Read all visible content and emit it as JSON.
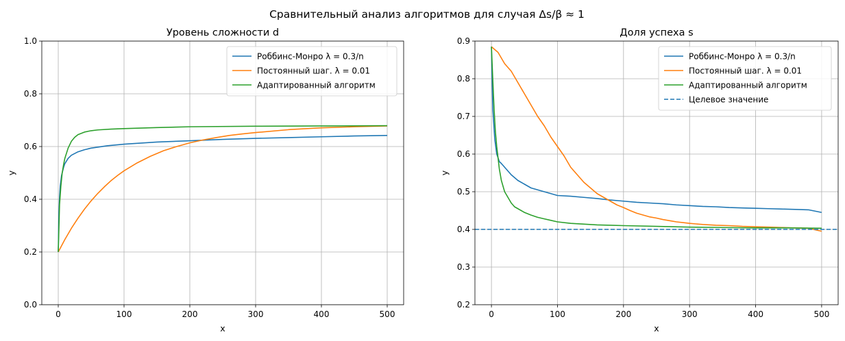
{
  "suptitle": "Сравнительный анализ алгоритмов для случая Δs/β ≈ 1",
  "colors": {
    "robbins": "#1f77b4",
    "constant": "#ff7f0e",
    "adaptive": "#2ca02c",
    "target": "#1f77b4",
    "grid": "#b0b0b0"
  },
  "chart_data": [
    {
      "type": "line",
      "title": "Уровень сложности d",
      "xlabel": "x",
      "ylabel": "y",
      "xlim": [
        -25,
        525
      ],
      "ylim": [
        0.0,
        1.0
      ],
      "xticks": [
        0,
        100,
        200,
        300,
        400,
        500
      ],
      "xtick_labels": [
        "0",
        "100",
        "200",
        "300",
        "400",
        "500"
      ],
      "yticks": [
        0.0,
        0.2,
        0.4,
        0.6,
        0.8,
        1.0
      ],
      "ytick_labels": [
        "0.0",
        "0.2",
        "0.4",
        "0.6",
        "0.8",
        "1.0"
      ],
      "grid": true,
      "legend_position": "top-right",
      "series": [
        {
          "name": "Роббинс-Монро λ = 0.3/n",
          "key": "robbins",
          "x": [
            0,
            1,
            2,
            3,
            5,
            8,
            10,
            15,
            20,
            30,
            40,
            50,
            75,
            100,
            150,
            200,
            250,
            300,
            350,
            400,
            450,
            500
          ],
          "y": [
            0.2,
            0.35,
            0.41,
            0.45,
            0.49,
            0.52,
            0.535,
            0.555,
            0.567,
            0.58,
            0.588,
            0.594,
            0.603,
            0.609,
            0.617,
            0.622,
            0.627,
            0.631,
            0.634,
            0.637,
            0.64,
            0.642
          ]
        },
        {
          "name": "Постоянный шаг. λ = 0.01",
          "key": "constant",
          "x": [
            0,
            10,
            20,
            30,
            40,
            50,
            60,
            70,
            80,
            90,
            100,
            120,
            140,
            160,
            180,
            200,
            220,
            240,
            260,
            280,
            300,
            350,
            400,
            450,
            500
          ],
          "y": [
            0.2,
            0.247,
            0.29,
            0.328,
            0.363,
            0.394,
            0.422,
            0.447,
            0.47,
            0.49,
            0.508,
            0.538,
            0.563,
            0.584,
            0.6,
            0.614,
            0.625,
            0.634,
            0.642,
            0.648,
            0.653,
            0.664,
            0.671,
            0.675,
            0.678
          ]
        },
        {
          "name": "Адаптированный алгоритм",
          "key": "adaptive",
          "x": [
            0,
            2,
            4,
            6,
            8,
            10,
            15,
            20,
            25,
            30,
            40,
            50,
            60,
            80,
            100,
            150,
            200,
            300,
            400,
            500
          ],
          "y": [
            0.2,
            0.38,
            0.45,
            0.5,
            0.53,
            0.555,
            0.594,
            0.62,
            0.635,
            0.645,
            0.655,
            0.66,
            0.663,
            0.666,
            0.668,
            0.672,
            0.675,
            0.677,
            0.678,
            0.679
          ]
        }
      ]
    },
    {
      "type": "line",
      "title": "Доля успеха s",
      "xlabel": "x",
      "ylabel": "y",
      "xlim": [
        -25,
        525
      ],
      "ylim": [
        0.2,
        0.9
      ],
      "xticks": [
        0,
        100,
        200,
        300,
        400,
        500
      ],
      "xtick_labels": [
        "0",
        "100",
        "200",
        "300",
        "400",
        "500"
      ],
      "yticks": [
        0.2,
        0.3,
        0.4,
        0.5,
        0.6,
        0.7,
        0.8,
        0.9
      ],
      "ytick_labels": [
        "0.2",
        "0.3",
        "0.4",
        "0.5",
        "0.6",
        "0.7",
        "0.8",
        "0.9"
      ],
      "grid": true,
      "legend_position": "top-right",
      "series": [
        {
          "name": "Роббинс-Монро λ = 0.3/n",
          "key": "robbins",
          "x": [
            0,
            2,
            5,
            8,
            10,
            12,
            15,
            20,
            25,
            30,
            40,
            50,
            60,
            70,
            80,
            90,
            100,
            120,
            140,
            160,
            180,
            200,
            220,
            240,
            260,
            280,
            300,
            320,
            340,
            360,
            380,
            400,
            420,
            440,
            460,
            480,
            500
          ],
          "y": [
            0.885,
            0.72,
            0.64,
            0.6,
            0.59,
            0.58,
            0.575,
            0.565,
            0.555,
            0.545,
            0.53,
            0.52,
            0.51,
            0.505,
            0.5,
            0.495,
            0.49,
            0.488,
            0.485,
            0.482,
            0.478,
            0.475,
            0.472,
            0.47,
            0.468,
            0.465,
            0.463,
            0.461,
            0.46,
            0.458,
            0.457,
            0.456,
            0.455,
            0.454,
            0.453,
            0.452,
            0.445
          ]
        },
        {
          "name": "Постоянный шаг. λ = 0.01",
          "key": "constant",
          "x": [
            0,
            10,
            20,
            30,
            40,
            50,
            60,
            70,
            80,
            90,
            100,
            110,
            120,
            130,
            140,
            150,
            160,
            170,
            180,
            190,
            200,
            210,
            220,
            230,
            240,
            250,
            260,
            270,
            280,
            290,
            300,
            320,
            340,
            360,
            380,
            400,
            420,
            440,
            460,
            480,
            500
          ],
          "y": [
            0.885,
            0.87,
            0.84,
            0.82,
            0.79,
            0.76,
            0.73,
            0.7,
            0.675,
            0.645,
            0.62,
            0.595,
            0.565,
            0.545,
            0.525,
            0.51,
            0.495,
            0.485,
            0.475,
            0.465,
            0.458,
            0.45,
            0.443,
            0.438,
            0.433,
            0.43,
            0.426,
            0.423,
            0.42,
            0.418,
            0.416,
            0.413,
            0.411,
            0.41,
            0.408,
            0.407,
            0.406,
            0.405,
            0.404,
            0.403,
            0.395
          ]
        },
        {
          "name": "Адаптированный алгоритм",
          "key": "adaptive",
          "x": [
            0,
            2,
            4,
            6,
            8,
            10,
            12,
            15,
            20,
            25,
            30,
            35,
            40,
            50,
            60,
            70,
            80,
            90,
            100,
            120,
            140,
            160,
            180,
            200,
            250,
            300,
            350,
            400,
            450,
            500
          ],
          "y": [
            0.885,
            0.8,
            0.72,
            0.66,
            0.62,
            0.59,
            0.56,
            0.53,
            0.5,
            0.485,
            0.47,
            0.46,
            0.455,
            0.445,
            0.438,
            0.432,
            0.428,
            0.424,
            0.42,
            0.416,
            0.414,
            0.412,
            0.411,
            0.41,
            0.408,
            0.406,
            0.405,
            0.404,
            0.404,
            0.403
          ]
        },
        {
          "name": "Целевое значение",
          "key": "target",
          "dashed": true,
          "x": [
            -25,
            525
          ],
          "y": [
            0.4,
            0.4
          ]
        }
      ]
    }
  ]
}
